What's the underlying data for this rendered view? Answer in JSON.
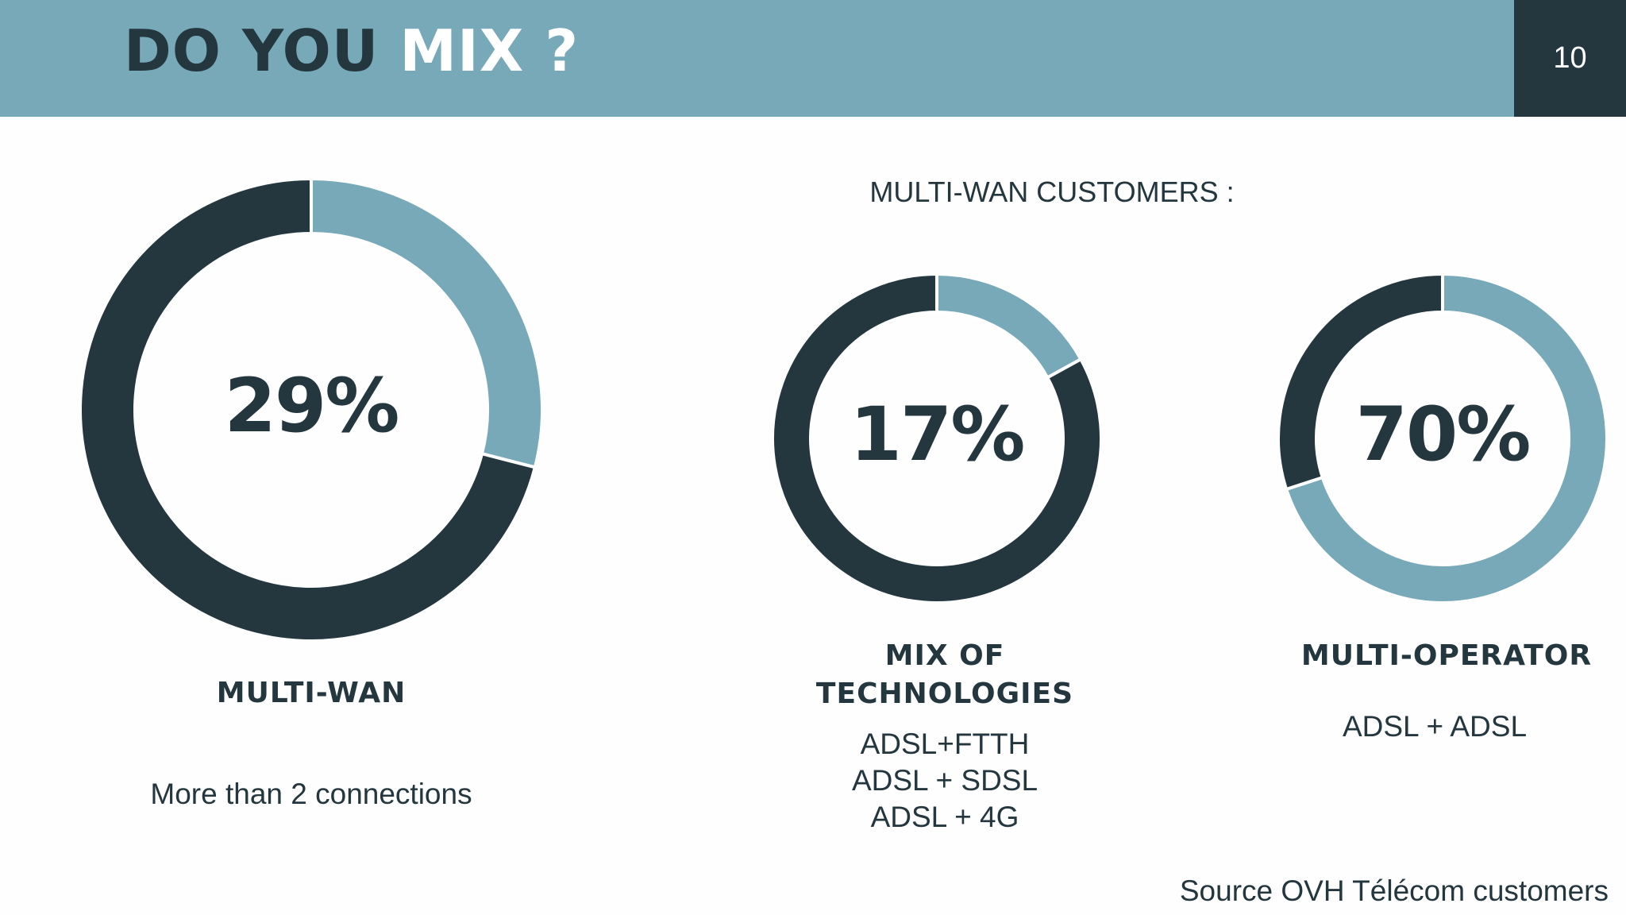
{
  "header": {
    "title_part1": "DO YOU ",
    "title_part2": "MIX ?",
    "page_number": "10"
  },
  "subtitle": "MULTI-WAN CUSTOMERS :",
  "colors": {
    "dark": "#24363e",
    "light": "#78a9b8",
    "background": "#fefefe"
  },
  "chart_data": [
    {
      "type": "pie",
      "title": "MULTI-WAN",
      "center_label": "29%",
      "slices": [
        {
          "value": 29,
          "color": "#78a9b8"
        },
        {
          "value": 71,
          "color": "#24363e"
        }
      ],
      "description": [
        "More than 2 connections"
      ]
    },
    {
      "type": "pie",
      "title": "MIX OF TECHNOLOGIES",
      "title_lines": [
        "MIX OF",
        "TECHNOLOGIES"
      ],
      "center_label": "17%",
      "slices": [
        {
          "value": 17,
          "color": "#78a9b8"
        },
        {
          "value": 83,
          "color": "#24363e"
        }
      ],
      "description": [
        "ADSL+FTTH",
        "ADSL + SDSL",
        "ADSL + 4G"
      ]
    },
    {
      "type": "pie",
      "title": "MULTI-OPERATOR",
      "center_label": "70%",
      "slices": [
        {
          "value": 70,
          "color": "#78a9b8"
        },
        {
          "value": 30,
          "color": "#24363e"
        }
      ],
      "description": [
        "ADSL + ADSL"
      ]
    }
  ],
  "source": "Source OVH Télécom customers"
}
